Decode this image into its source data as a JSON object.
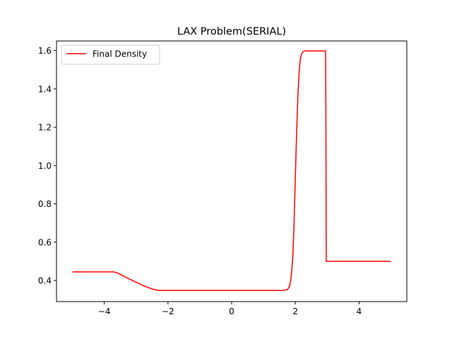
{
  "chart_data": {
    "type": "line",
    "title": "LAX Problem(SERIAL)",
    "xlabel": "",
    "ylabel": "",
    "xlim": [
      -5.5,
      5.5
    ],
    "ylim": [
      0.29,
      1.65
    ],
    "xticks": [
      -4,
      -2,
      0,
      2,
      4
    ],
    "yticks": [
      0.4,
      0.6,
      0.8,
      1.0,
      1.2,
      1.4,
      1.6
    ],
    "xtick_labels": [
      "−4",
      "−2",
      "0",
      "2",
      "4"
    ],
    "ytick_labels": [
      "0.4",
      "0.6",
      "0.8",
      "1.0",
      "1.2",
      "1.4",
      "1.6"
    ],
    "grid": false,
    "legend_position": "upper-left",
    "series": [
      {
        "name": "Final Density",
        "color": "#ff0000",
        "x": [
          -5.0,
          -4.5,
          -4.0,
          -3.7,
          -3.6,
          -3.5,
          -3.3,
          -3.1,
          -2.9,
          -2.7,
          -2.5,
          -2.35,
          -2.25,
          -2.2,
          -1.5,
          0.0,
          1.0,
          1.6,
          1.75,
          1.82,
          1.87,
          1.92,
          1.96,
          2.0,
          2.04,
          2.08,
          2.12,
          2.16,
          2.2,
          2.25,
          2.3,
          2.4,
          2.6,
          2.8,
          2.95,
          2.96,
          2.97,
          3.0,
          4.0,
          5.0
        ],
        "y": [
          0.445,
          0.445,
          0.445,
          0.445,
          0.44,
          0.432,
          0.415,
          0.399,
          0.383,
          0.368,
          0.356,
          0.35,
          0.348,
          0.348,
          0.348,
          0.348,
          0.348,
          0.348,
          0.352,
          0.37,
          0.42,
          0.52,
          0.7,
          0.94,
          1.17,
          1.36,
          1.49,
          1.56,
          1.585,
          1.595,
          1.598,
          1.598,
          1.598,
          1.598,
          1.598,
          1.2,
          0.5,
          0.5,
          0.5,
          0.5
        ]
      }
    ]
  }
}
